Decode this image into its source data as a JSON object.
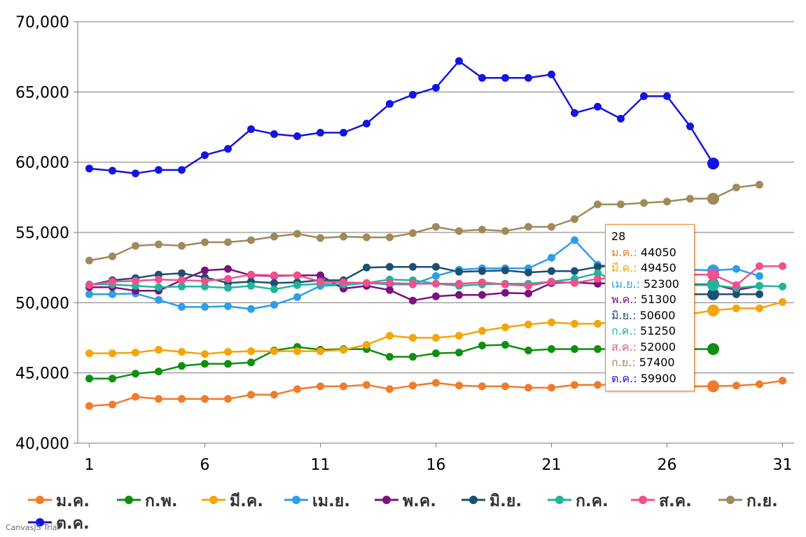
{
  "chart_data": {
    "type": "line",
    "x": [
      1,
      2,
      3,
      4,
      5,
      6,
      7,
      8,
      9,
      10,
      11,
      12,
      13,
      14,
      15,
      16,
      17,
      18,
      19,
      20,
      21,
      22,
      23,
      24,
      25,
      26,
      27,
      28,
      29,
      30,
      31
    ],
    "x_ticks": [
      "1",
      "6",
      "11",
      "16",
      "21",
      "26",
      "31"
    ],
    "y_ticks": [
      "40,000",
      "45,000",
      "50,000",
      "55,000",
      "60,000",
      "65,000",
      "70,000"
    ],
    "ylim": [
      40000,
      70000
    ],
    "xlim": [
      0.5,
      31.5
    ],
    "grid": "horizontal",
    "legend_position": "bottom",
    "highlight_x": 28,
    "series": [
      {
        "name": "ม.ค.",
        "color": "#f07b2a",
        "values": [
          42650,
          42750,
          43300,
          43150,
          43150,
          43150,
          43150,
          43450,
          43450,
          43850,
          44050,
          44050,
          44150,
          43850,
          44100,
          44300,
          44100,
          44050,
          44050,
          43950,
          43950,
          44150,
          44150,
          44150,
          44050,
          44050,
          44050,
          44050,
          44100,
          44200,
          44450
        ]
      },
      {
        "name": "ก.พ.",
        "color": "#0f8f0f",
        "values": [
          44600,
          44600,
          44950,
          45100,
          45500,
          45650,
          45650,
          45750,
          46600,
          46850,
          46650,
          46700,
          46700,
          46150,
          46150,
          46400,
          46450,
          46950,
          47000,
          46600,
          46700,
          46700,
          46700,
          46700,
          46700,
          46700,
          46700,
          46700,
          null,
          null,
          null
        ]
      },
      {
        "name": "มี.ค.",
        "color": "#f5a40a",
        "values": [
          46400,
          46400,
          46450,
          46650,
          46500,
          46350,
          46500,
          46550,
          46550,
          46550,
          46550,
          46650,
          47000,
          47650,
          47500,
          47500,
          47650,
          48000,
          48250,
          48450,
          48600,
          48500,
          48500,
          48700,
          48850,
          49000,
          49200,
          49450,
          49600,
          49600,
          50050
        ]
      },
      {
        "name": "เม.ย.",
        "color": "#2e9ee8",
        "values": [
          50600,
          50600,
          50650,
          50200,
          49700,
          49700,
          49750,
          49550,
          49850,
          50400,
          51200,
          51250,
          51400,
          51300,
          51300,
          51900,
          52350,
          52450,
          52450,
          52450,
          53200,
          54450,
          52700,
          52450,
          52300,
          52300,
          52350,
          52300,
          52400,
          51900,
          null
        ]
      },
      {
        "name": "พ.ค.",
        "color": "#7a1280",
        "values": [
          51100,
          51100,
          50850,
          50850,
          51600,
          52300,
          52400,
          51950,
          51900,
          51950,
          51950,
          51000,
          51200,
          50900,
          50150,
          50450,
          50550,
          50550,
          50700,
          50650,
          51400,
          51450,
          51350,
          51450,
          51400,
          51300,
          51300,
          51300,
          50900,
          51200,
          null
        ]
      },
      {
        "name": "มิ.ย.",
        "color": "#1c4f74",
        "values": [
          51250,
          51600,
          51750,
          52000,
          52100,
          51800,
          51400,
          51500,
          51400,
          51450,
          51600,
          51600,
          52500,
          52550,
          52550,
          52550,
          52200,
          52250,
          52300,
          52150,
          52250,
          52250,
          52550,
          52700,
          52300,
          51400,
          50600,
          50600,
          50600,
          50600,
          null
        ]
      },
      {
        "name": "ก.ค.",
        "color": "#21b59a",
        "values": [
          51300,
          51300,
          51200,
          51100,
          51150,
          51150,
          51050,
          51200,
          50950,
          51250,
          51350,
          51300,
          51400,
          51650,
          51600,
          51350,
          51200,
          51300,
          51350,
          51350,
          51500,
          51700,
          52100,
          51400,
          51250,
          51250,
          51250,
          51250,
          51050,
          51200,
          51150
        ]
      },
      {
        "name": "ส.ค.",
        "color": "#f0508c",
        "values": [
          51250,
          51500,
          51550,
          51650,
          51600,
          51550,
          51700,
          52000,
          51950,
          51950,
          51500,
          51450,
          51400,
          51400,
          51350,
          51350,
          51350,
          51450,
          51300,
          51200,
          51500,
          51400,
          51700,
          51800,
          52000,
          51950,
          52000,
          52000,
          51250,
          52600,
          52600
        ]
      },
      {
        "name": "ก.ย.",
        "color": "#a08a5a",
        "values": [
          53000,
          53300,
          54050,
          54150,
          54050,
          54300,
          54300,
          54450,
          54700,
          54900,
          54600,
          54700,
          54650,
          54650,
          54950,
          55400,
          55100,
          55200,
          55100,
          55400,
          55400,
          55950,
          57000,
          57000,
          57100,
          57200,
          57400,
          57400,
          58200,
          58400,
          null
        ]
      },
      {
        "name": "ต.ค.",
        "color": "#1414e0",
        "values": [
          59550,
          59400,
          59200,
          59450,
          59450,
          60500,
          60950,
          62350,
          62000,
          61850,
          62100,
          62100,
          62750,
          64150,
          64800,
          65300,
          67200,
          66000,
          66000,
          66000,
          66250,
          63500,
          63950,
          63100,
          64700,
          64700,
          62550,
          59900,
          null,
          null,
          null
        ]
      }
    ]
  },
  "tooltip": {
    "title": "28",
    "rows": [
      {
        "name": "ม.ค.:",
        "value": "44050",
        "color": "#f07b2a"
      },
      {
        "name": "มี.ค.:",
        "value": "49450",
        "color": "#f5a40a"
      },
      {
        "name": "เม.ย.:",
        "value": "52300",
        "color": "#2e9ee8"
      },
      {
        "name": "พ.ค.:",
        "value": "51300",
        "color": "#7a1280"
      },
      {
        "name": "มิ.ย.:",
        "value": "50600",
        "color": "#1c4f74"
      },
      {
        "name": "ก.ค.:",
        "value": "51250",
        "color": "#21b59a"
      },
      {
        "name": "ส.ค.:",
        "value": "52000",
        "color": "#f0508c"
      },
      {
        "name": "ก.ย.:",
        "value": "57400",
        "color": "#a08a5a"
      },
      {
        "name": "ต.ค.:",
        "value": "59900",
        "color": "#1414e0"
      }
    ]
  },
  "watermark": "CanvasJS Trial"
}
